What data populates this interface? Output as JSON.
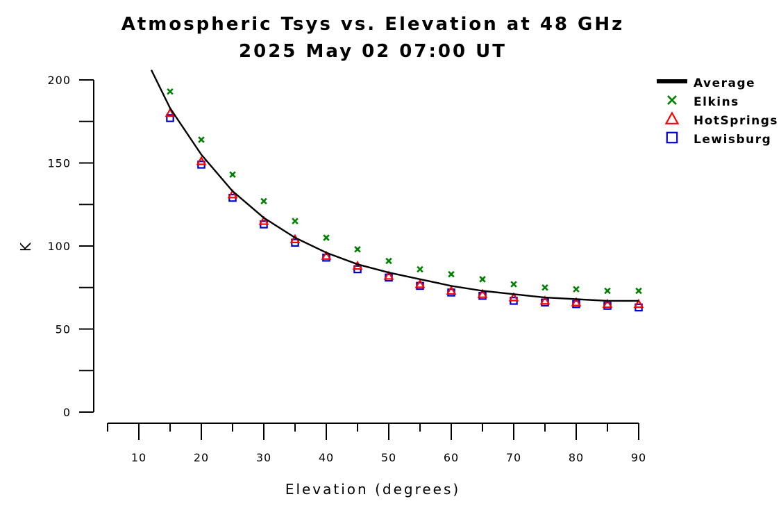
{
  "chart_data": {
    "type": "line",
    "title": "Atmospheric Tsys vs. Elevation at 48 GHz",
    "subtitle": "2025 May 02 07:00 UT",
    "xlabel": "Elevation (degrees)",
    "ylabel": "K",
    "xlim": [
      5,
      90
    ],
    "ylim": [
      0,
      200
    ],
    "x_ticks": [
      10,
      20,
      30,
      40,
      50,
      60,
      70,
      80,
      90
    ],
    "x_minor_ticks": [
      5,
      15,
      25,
      35,
      45,
      55,
      65,
      75,
      85
    ],
    "y_ticks": [
      0,
      50,
      100,
      150,
      200
    ],
    "y_minor_ticks": [
      25,
      75,
      125,
      175
    ],
    "grid": false,
    "legend_position": "top-right",
    "x": [
      15,
      20,
      25,
      30,
      35,
      40,
      45,
      50,
      55,
      60,
      65,
      70,
      75,
      80,
      85,
      90
    ],
    "series": [
      {
        "name": "Average",
        "marker": "line",
        "color": "#000000",
        "x": [
          12,
          15,
          20,
          25,
          30,
          35,
          40,
          45,
          50,
          55,
          60,
          65,
          70,
          75,
          80,
          85,
          90
        ],
        "values": [
          206,
          183,
          155,
          133,
          117,
          105,
          96,
          89,
          84,
          80,
          76,
          73,
          71,
          69,
          68,
          67,
          67
        ]
      },
      {
        "name": "Elkins",
        "marker": "x",
        "color": "#008000",
        "values": [
          193,
          164,
          143,
          127,
          115,
          105,
          98,
          91,
          86,
          83,
          80,
          77,
          75,
          74,
          73,
          73
        ]
      },
      {
        "name": "HotSprings",
        "marker": "triangle",
        "color": "#ff0000",
        "values": [
          180,
          151,
          131,
          115,
          104,
          94,
          88,
          82,
          77,
          73,
          71,
          69,
          67,
          66,
          65,
          65
        ]
      },
      {
        "name": "Lewisburg",
        "marker": "square",
        "color": "#0000cc",
        "values": [
          177,
          149,
          129,
          113,
          102,
          93,
          86,
          81,
          76,
          72,
          70,
          67,
          66,
          65,
          64,
          63
        ]
      }
    ]
  }
}
